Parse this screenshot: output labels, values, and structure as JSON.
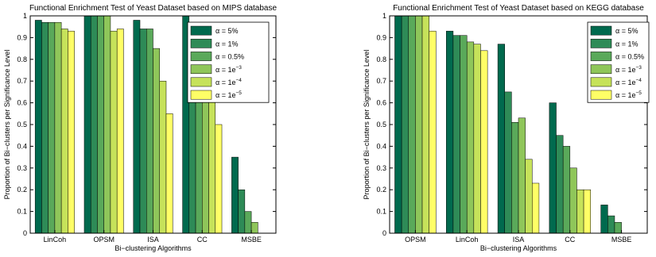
{
  "chart_data": [
    {
      "type": "bar",
      "title": "Functional Enrichment Test of Yeast Dataset based on MIPS database",
      "xlabel": "Bi−clustering Algorithms",
      "ylabel": "Proportion of Bi−clusters per Significance Level",
      "ylim": [
        0,
        1
      ],
      "yticks": [
        "0",
        "0.1",
        "0.2",
        "0.3",
        "0.4",
        "0.5",
        "0.6",
        "0.7",
        "0.8",
        "0.9",
        "1"
      ],
      "grid": false,
      "legend_position": "top-right",
      "categories": [
        "LinCoh",
        "OPSM",
        "ISA",
        "CC",
        "MSBE"
      ],
      "series": [
        {
          "name": "α = 5%",
          "base": "α = 5%",
          "exp": "",
          "color": "#006a4e",
          "values": [
            0.98,
            1.0,
            0.98,
            1.0,
            0.35
          ]
        },
        {
          "name": "α = 1%",
          "base": "α = 1%",
          "exp": "",
          "color": "#2e8b57",
          "values": [
            0.97,
            1.0,
            0.94,
            0.9,
            0.2
          ]
        },
        {
          "name": "α = 0.5%",
          "base": "α = 0.5%",
          "exp": "",
          "color": "#5aa95a",
          "values": [
            0.97,
            1.0,
            0.94,
            0.8,
            0.1
          ]
        },
        {
          "name": "α = 1e^-3",
          "base": "α = 1e",
          "exp": "−3",
          "color": "#8fc65a",
          "values": [
            0.97,
            1.0,
            0.85,
            0.8,
            0.05
          ]
        },
        {
          "name": "α = 1e^-4",
          "base": "α = 1e",
          "exp": "−4",
          "color": "#c6e25a",
          "values": [
            0.94,
            0.93,
            0.7,
            0.77,
            0.0
          ]
        },
        {
          "name": "α = 1e^-5",
          "base": "α = 1e",
          "exp": "−5",
          "color": "#ffff66",
          "values": [
            0.93,
            0.94,
            0.55,
            0.5,
            0.0
          ]
        }
      ]
    },
    {
      "type": "bar",
      "title": "Functional Enrichment Test of Yeast Dataset based on KEGG database",
      "xlabel": "Bi−clustering Algorithms",
      "ylabel": "Proportion of Bi−clusters per Significance Level",
      "ylim": [
        0,
        1
      ],
      "yticks": [
        "0",
        "0.1",
        "0.2",
        "0.3",
        "0.4",
        "0.5",
        "0.6",
        "0.7",
        "0.8",
        "0.9",
        "1"
      ],
      "grid": false,
      "legend_position": "top-right",
      "categories": [
        "OPSM",
        "LinCoh",
        "ISA",
        "CC",
        "MSBE"
      ],
      "series": [
        {
          "name": "α = 5%",
          "base": "α = 5%",
          "exp": "",
          "color": "#006a4e",
          "values": [
            1.0,
            0.93,
            0.87,
            0.6,
            0.13
          ]
        },
        {
          "name": "α = 1%",
          "base": "α = 1%",
          "exp": "",
          "color": "#2e8b57",
          "values": [
            1.0,
            0.91,
            0.65,
            0.45,
            0.08
          ]
        },
        {
          "name": "α = 0.5%",
          "base": "α = 0.5%",
          "exp": "",
          "color": "#5aa95a",
          "values": [
            1.0,
            0.91,
            0.51,
            0.4,
            0.05
          ]
        },
        {
          "name": "α = 1e^-3",
          "base": "α = 1e",
          "exp": "−3",
          "color": "#8fc65a",
          "values": [
            1.0,
            0.88,
            0.53,
            0.3,
            0.0
          ]
        },
        {
          "name": "α = 1e^-4",
          "base": "α = 1e",
          "exp": "−4",
          "color": "#c6e25a",
          "values": [
            1.0,
            0.87,
            0.34,
            0.2,
            0.0
          ]
        },
        {
          "name": "α = 1e^-5",
          "base": "α = 1e",
          "exp": "−5",
          "color": "#ffff66",
          "values": [
            0.93,
            0.84,
            0.23,
            0.2,
            0.0
          ]
        }
      ]
    }
  ]
}
